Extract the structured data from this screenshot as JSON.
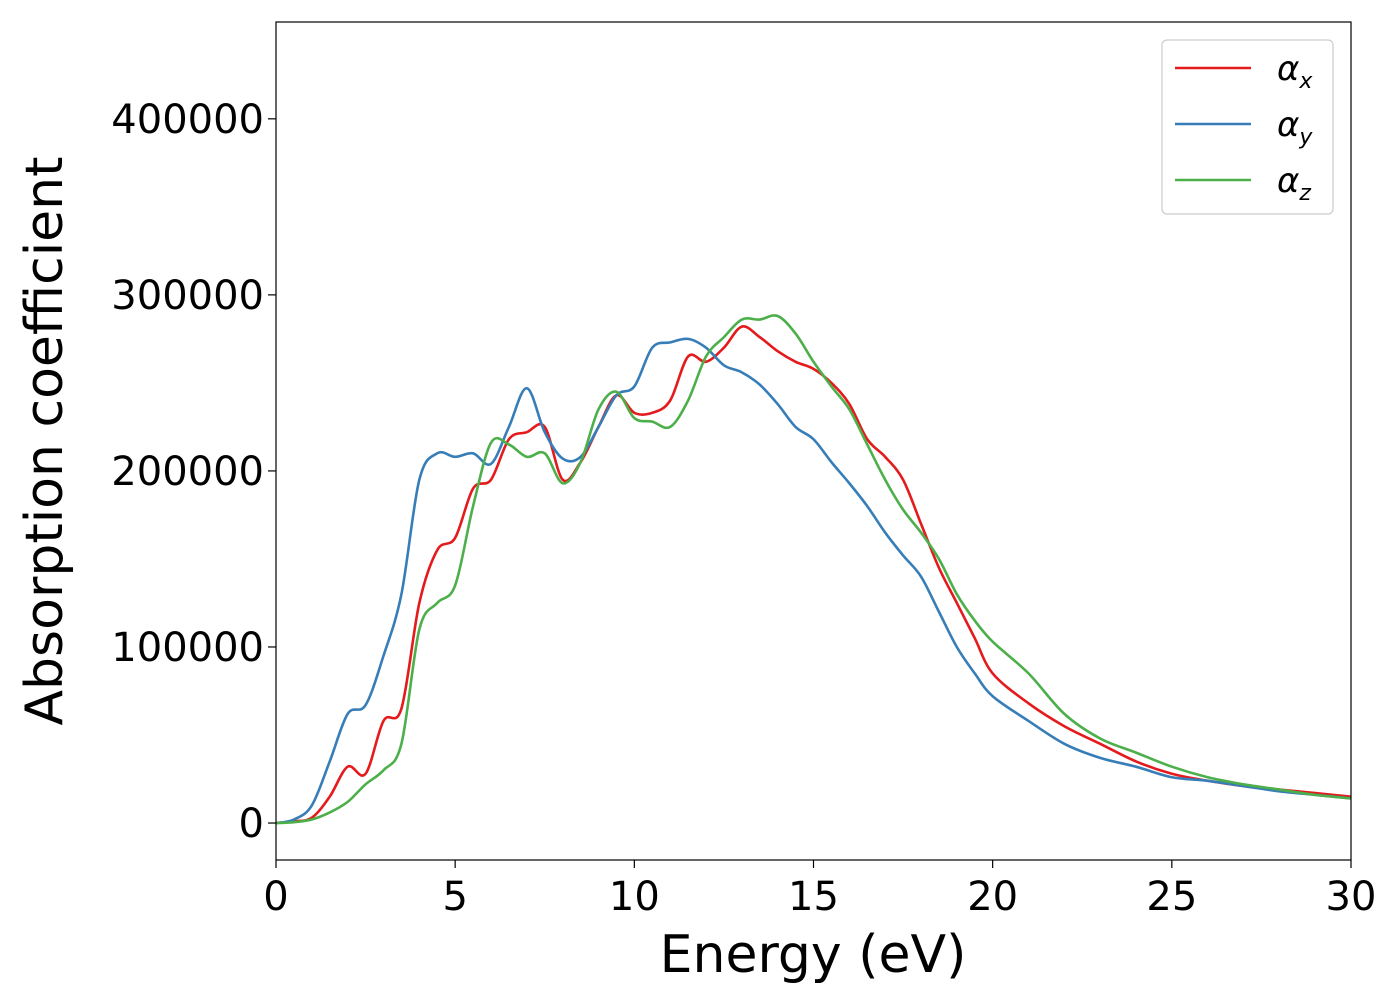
{
  "chart_data": {
    "type": "line",
    "title": "",
    "xlabel": "Energy (eV)",
    "ylabel": "Absorption coefficient",
    "xlim": [
      0,
      30
    ],
    "ylim": [
      -21000,
      455000
    ],
    "x_ticks": [
      0,
      5,
      10,
      15,
      20,
      25,
      30
    ],
    "y_ticks": [
      0,
      100000,
      200000,
      300000,
      400000
    ],
    "x_tick_labels": [
      "0",
      "5",
      "10",
      "15",
      "20",
      "25",
      "30"
    ],
    "y_tick_labels": [
      "0",
      "100000",
      "200000",
      "300000",
      "400000"
    ],
    "grid": false,
    "legend_position": "top-right",
    "series": [
      {
        "name": "α_x",
        "symbol": "α",
        "subscript": "x",
        "color": "#e41a1c",
        "x": [
          0,
          0.5,
          1.0,
          1.5,
          2.0,
          2.5,
          3.0,
          3.5,
          4.0,
          4.5,
          5.0,
          5.5,
          6.0,
          6.5,
          7.0,
          7.5,
          8.0,
          8.5,
          9.0,
          9.5,
          10.0,
          10.5,
          11.0,
          11.5,
          12.0,
          12.5,
          13.0,
          13.5,
          14.0,
          14.5,
          15.0,
          15.5,
          16.0,
          16.5,
          17.0,
          17.5,
          18.0,
          18.5,
          19.0,
          19.5,
          20.0,
          21.0,
          22.0,
          23.0,
          24.0,
          25.0,
          26.0,
          27.0,
          28.0,
          29.0,
          30.0
        ],
        "y": [
          0,
          1000,
          3000,
          15000,
          32000,
          28000,
          58000,
          65000,
          125000,
          155000,
          162000,
          190000,
          195000,
          218000,
          222000,
          225000,
          195000,
          205000,
          225000,
          243000,
          233000,
          233000,
          240000,
          265000,
          262000,
          270000,
          282000,
          276000,
          268000,
          262000,
          258000,
          250000,
          238000,
          218000,
          208000,
          195000,
          170000,
          145000,
          125000,
          105000,
          85000,
          68000,
          55000,
          45000,
          35000,
          28000,
          24000,
          21000,
          19000,
          17000,
          15000
        ]
      },
      {
        "name": "α_y",
        "symbol": "α",
        "subscript": "y",
        "color": "#377eb8",
        "x": [
          0,
          0.5,
          1.0,
          1.5,
          2.0,
          2.5,
          3.0,
          3.5,
          4.0,
          4.5,
          5.0,
          5.5,
          6.0,
          6.5,
          7.0,
          7.5,
          8.0,
          8.5,
          9.0,
          9.5,
          10.0,
          10.5,
          11.0,
          11.5,
          12.0,
          12.5,
          13.0,
          13.5,
          14.0,
          14.5,
          15.0,
          15.5,
          16.0,
          16.5,
          17.0,
          17.5,
          18.0,
          18.5,
          19.0,
          19.5,
          20.0,
          21.0,
          22.0,
          23.0,
          24.0,
          25.0,
          26.0,
          27.0,
          28.0,
          29.0,
          30.0
        ],
        "y": [
          0,
          2000,
          10000,
          35000,
          62000,
          67000,
          95000,
          130000,
          195000,
          210000,
          208000,
          210000,
          204000,
          225000,
          247000,
          222000,
          207000,
          208000,
          225000,
          243000,
          248000,
          270000,
          273000,
          275000,
          270000,
          260000,
          256000,
          249000,
          238000,
          225000,
          218000,
          205000,
          193000,
          180000,
          165000,
          152000,
          140000,
          120000,
          100000,
          85000,
          72000,
          58000,
          45000,
          37000,
          32000,
          26000,
          24000,
          21000,
          18000,
          16000,
          14000
        ]
      },
      {
        "name": "α_z",
        "symbol": "α",
        "subscript": "z",
        "color": "#4daf4a",
        "x": [
          0,
          0.5,
          1.0,
          1.5,
          2.0,
          2.5,
          3.0,
          3.5,
          4.0,
          4.5,
          5.0,
          5.5,
          6.0,
          6.5,
          7.0,
          7.5,
          8.0,
          8.5,
          9.0,
          9.5,
          10.0,
          10.5,
          11.0,
          11.5,
          12.0,
          12.5,
          13.0,
          13.5,
          14.0,
          14.5,
          15.0,
          15.5,
          16.0,
          16.5,
          17.0,
          17.5,
          18.0,
          18.5,
          19.0,
          19.5,
          20.0,
          21.0,
          22.0,
          23.0,
          24.0,
          25.0,
          26.0,
          27.0,
          28.0,
          29.0,
          30.0
        ],
        "y": [
          0,
          500,
          2000,
          6000,
          12000,
          22000,
          30000,
          45000,
          110000,
          125000,
          135000,
          180000,
          216000,
          215000,
          208000,
          210000,
          193000,
          205000,
          235000,
          245000,
          230000,
          228000,
          225000,
          240000,
          265000,
          276000,
          286000,
          286000,
          288000,
          278000,
          262000,
          248000,
          235000,
          215000,
          195000,
          178000,
          165000,
          150000,
          130000,
          115000,
          103000,
          85000,
          62000,
          48000,
          40000,
          32000,
          26000,
          22000,
          19000,
          16000,
          14000
        ]
      }
    ]
  }
}
